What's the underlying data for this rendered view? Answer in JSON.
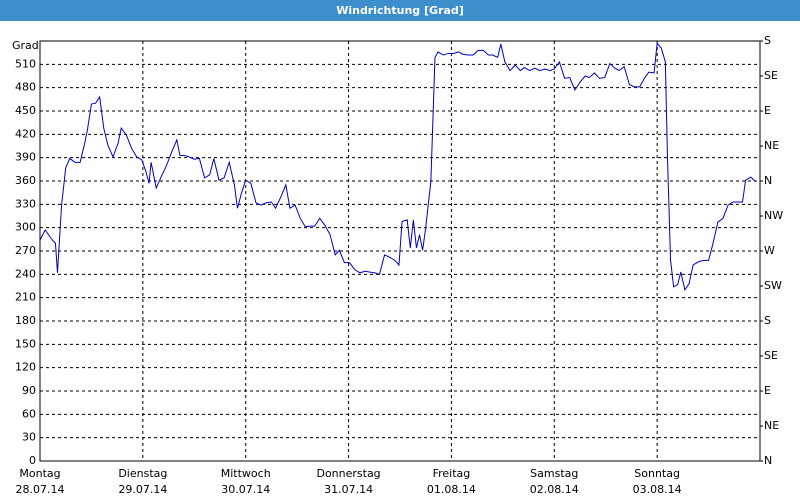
{
  "chart_data": {
    "type": "line",
    "title": "Windrichtung [Grad]",
    "y_label": "Grad",
    "xlim": [
      0,
      7
    ],
    "xticks": [
      {
        "value": 0,
        "label": "Montag"
      },
      {
        "value": 1,
        "label": "Dienstag"
      },
      {
        "value": 2,
        "label": "Mittwoch"
      },
      {
        "value": 3,
        "label": "Donnerstag"
      },
      {
        "value": 4,
        "label": "Freitag"
      },
      {
        "value": 5,
        "label": "Samstag"
      },
      {
        "value": 6,
        "label": "Sonntag"
      }
    ],
    "xtick_dates": [
      "28.07.14",
      "29.07.14",
      "30.07.14",
      "31.07.14",
      "01.08.14",
      "02.08.14",
      "03.08.14"
    ],
    "ylim": [
      0,
      540
    ],
    "yticks": [
      0,
      30,
      60,
      90,
      120,
      150,
      180,
      210,
      240,
      270,
      300,
      330,
      360,
      390,
      420,
      450,
      480,
      510
    ],
    "y2lim": [
      0,
      540
    ],
    "y2ticks": [
      {
        "value": 0,
        "label": "N"
      },
      {
        "value": 45,
        "label": "NE"
      },
      {
        "value": 90,
        "label": "E"
      },
      {
        "value": 135,
        "label": "SE"
      },
      {
        "value": 180,
        "label": "S"
      },
      {
        "value": 225,
        "label": "SW"
      },
      {
        "value": 270,
        "label": "W"
      },
      {
        "value": 315,
        "label": "NW"
      },
      {
        "value": 360,
        "label": "N"
      },
      {
        "value": 405,
        "label": "NE"
      },
      {
        "value": 450,
        "label": "E"
      },
      {
        "value": 495,
        "label": "SE"
      },
      {
        "value": 540,
        "label": "S"
      }
    ],
    "grid": true,
    "series": [
      {
        "color": "#0000c0",
        "x": [
          0,
          0.05,
          0.12,
          0.15,
          0.17,
          0.21,
          0.25,
          0.29,
          0.34,
          0.39,
          0.43,
          0.46,
          0.5,
          0.54,
          0.58,
          0.62,
          0.66,
          0.71,
          0.76,
          0.79,
          0.84,
          0.89,
          0.94,
          0.99,
          1.03,
          1.06,
          1.08,
          1.13,
          1.18,
          1.23,
          1.28,
          1.33,
          1.36,
          1.4,
          1.45,
          1.5,
          1.55,
          1.6,
          1.65,
          1.69,
          1.74,
          1.79,
          1.84,
          1.89,
          1.92,
          1.96,
          2.0,
          2.05,
          2.1,
          2.15,
          2.2,
          2.25,
          2.29,
          2.34,
          2.39,
          2.43,
          2.48,
          2.53,
          2.58,
          2.62,
          2.67,
          2.72,
          2.77,
          2.82,
          2.87,
          2.91,
          2.96,
          3.01,
          3.06,
          3.11,
          3.16,
          3.2,
          3.25,
          3.3,
          3.35,
          3.4,
          3.45,
          3.49,
          3.52,
          3.57,
          3.6,
          3.63,
          3.66,
          3.69,
          3.72,
          3.75,
          3.78,
          3.8,
          3.84,
          3.87,
          3.92,
          3.97,
          4.02,
          4.07,
          4.11,
          4.16,
          4.21,
          4.26,
          4.31,
          4.36,
          4.4,
          4.45,
          4.48,
          4.52,
          4.57,
          4.62,
          4.67,
          4.71,
          4.76,
          4.81,
          4.86,
          4.91,
          4.96,
          5.0,
          5.05,
          5.1,
          5.15,
          5.2,
          5.25,
          5.3,
          5.34,
          5.39,
          5.44,
          5.49,
          5.54,
          5.59,
          5.63,
          5.68,
          5.73,
          5.78,
          5.83,
          5.88,
          5.92,
          5.97,
          6.0,
          6.04,
          6.08,
          6.1,
          6.13,
          6.16,
          6.2,
          6.23,
          6.27,
          6.31,
          6.35,
          6.4,
          6.45,
          6.5,
          6.54,
          6.59,
          6.64,
          6.69,
          6.74,
          6.79,
          6.83,
          6.86,
          6.91,
          6.96
        ],
        "values": [
          284,
          297,
          284,
          280,
          242,
          329,
          377,
          389,
          384,
          384,
          406,
          425,
          459,
          460,
          468,
          428,
          406,
          391,
          409,
          428,
          419,
          402,
          391,
          387,
          372,
          357,
          384,
          351,
          366,
          380,
          397,
          413,
          393,
          393,
          391,
          388,
          389,
          364,
          368,
          389,
          361,
          364,
          384,
          355,
          325,
          345,
          361,
          357,
          332,
          329,
          332,
          333,
          325,
          339,
          355,
          325,
          329,
          312,
          301,
          302,
          302,
          312,
          303,
          291,
          265,
          271,
          255,
          255,
          246,
          242,
          244,
          243,
          242,
          240,
          265,
          262,
          258,
          252,
          308,
          310,
          274,
          310,
          274,
          291,
          271,
          300,
          336,
          359,
          519,
          526,
          522,
          524,
          524,
          526,
          523,
          522,
          522,
          528,
          528,
          522,
          522,
          519,
          536,
          513,
          502,
          509,
          502,
          506,
          502,
          505,
          502,
          504,
          502,
          504,
          513,
          492,
          493,
          477,
          487,
          495,
          493,
          499,
          492,
          493,
          511,
          505,
          502,
          507,
          484,
          481,
          481,
          493,
          500,
          499,
          537,
          531,
          513,
          393,
          259,
          224,
          227,
          243,
          220,
          228,
          252,
          256,
          258,
          258,
          278,
          307,
          312,
          329,
          333,
          333,
          333,
          361,
          365,
          359
        ]
      }
    ]
  }
}
